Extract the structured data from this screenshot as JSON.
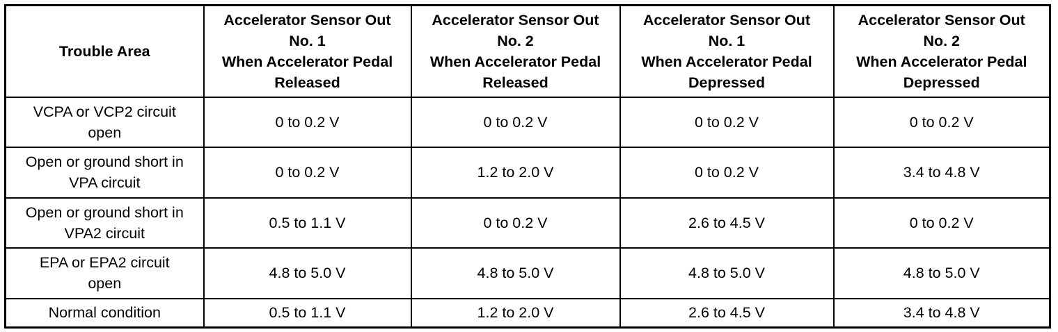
{
  "table": {
    "header": [
      [
        "Trouble Area"
      ],
      [
        "Accelerator Sensor Out",
        "No. 1",
        "When Accelerator Pedal",
        "Released"
      ],
      [
        "Accelerator Sensor Out",
        "No. 2",
        "When Accelerator Pedal",
        "Released"
      ],
      [
        "Accelerator Sensor Out",
        "No. 1",
        "When Accelerator Pedal",
        "Depressed"
      ],
      [
        "Accelerator Sensor Out",
        "No. 2",
        "When Accelerator Pedal",
        "Depressed"
      ]
    ],
    "rows": [
      [
        [
          "VCPA or VCP2 circuit",
          "open"
        ],
        "0 to 0.2 V",
        "0 to 0.2 V",
        "0 to 0.2 V",
        "0 to 0.2 V"
      ],
      [
        [
          "Open or ground short in",
          "VPA circuit"
        ],
        "0 to 0.2 V",
        "1.2 to 2.0 V",
        "0 to 0.2 V",
        "3.4 to 4.8 V"
      ],
      [
        [
          "Open or ground short in",
          "VPA2 circuit"
        ],
        "0.5 to 1.1 V",
        "0 to 0.2 V",
        "2.6 to 4.5 V",
        "0 to 0.2 V"
      ],
      [
        [
          "EPA or EPA2 circuit",
          "open"
        ],
        "4.8 to 5.0 V",
        "4.8 to 5.0 V",
        "4.8 to 5.0 V",
        "4.8 to 5.0 V"
      ],
      [
        [
          "Normal condition"
        ],
        "0.5 to 1.1 V",
        "1.2 to 2.0 V",
        "2.6 to 4.5 V",
        "3.4 to 4.8 V"
      ]
    ]
  }
}
